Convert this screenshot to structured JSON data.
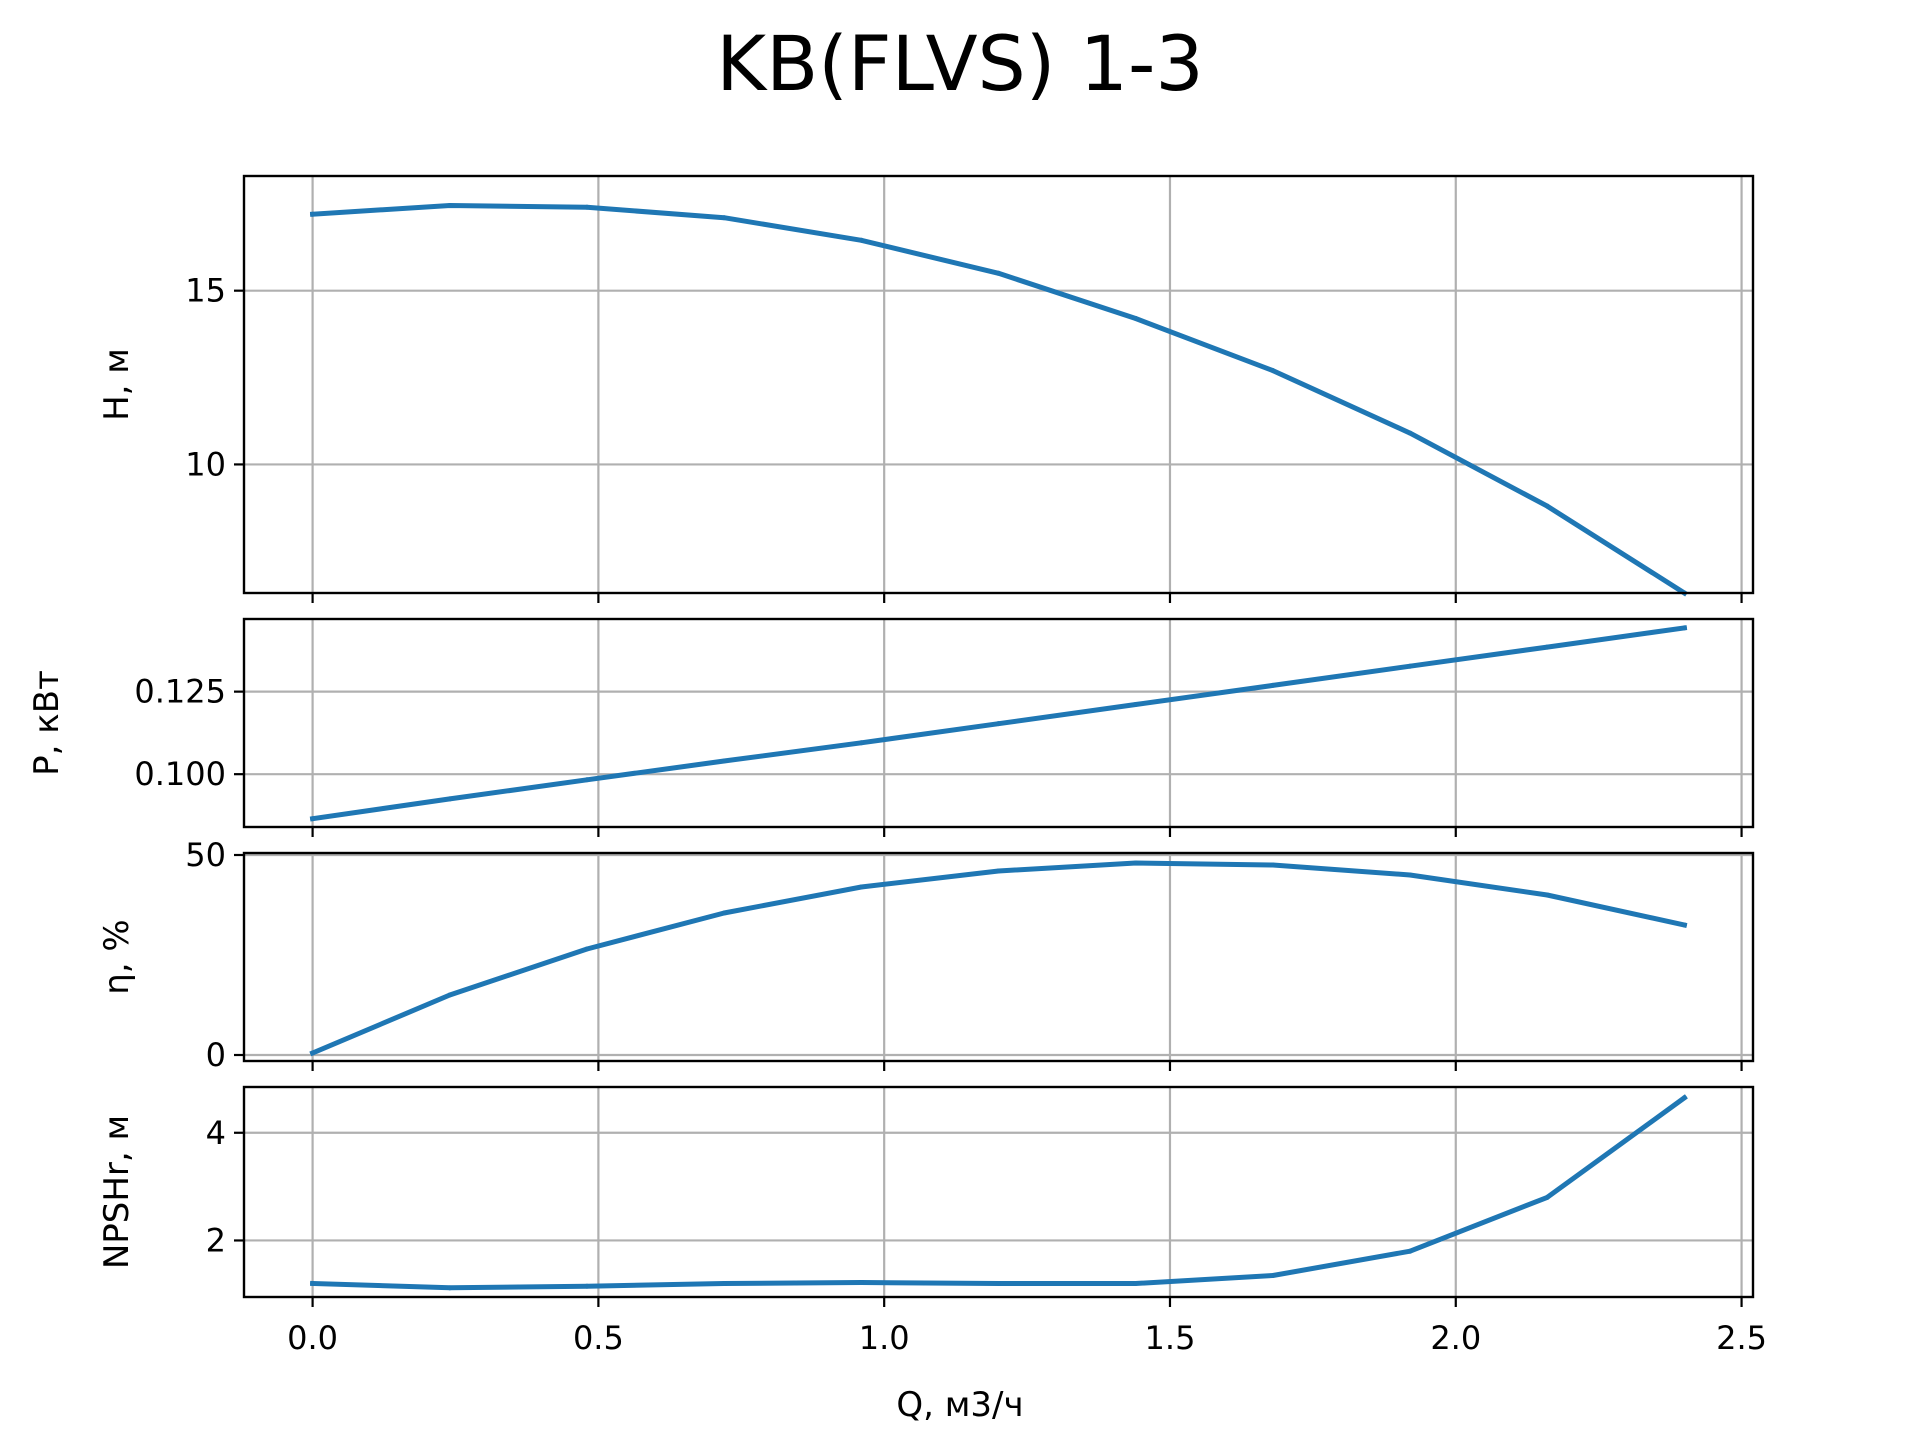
{
  "chart_data": {
    "type": "line",
    "title": "KB(FLVS) 1-3",
    "xlabel": "Q, м3/ч",
    "xlim": [
      -0.12,
      2.52
    ],
    "xticks": [
      0.0,
      0.5,
      1.0,
      1.5,
      2.0,
      2.5
    ],
    "xtick_labels": [
      "0.0",
      "0.5",
      "1.0",
      "1.5",
      "2.0",
      "2.5"
    ],
    "grid": true,
    "line_color": "#1f77b4",
    "x": [
      0.0,
      0.24,
      0.48,
      0.72,
      0.96,
      1.2,
      1.44,
      1.68,
      1.92,
      2.16,
      2.4
    ],
    "panels": [
      {
        "ylabel": "H, м",
        "ylim": [
          6.3,
          18.3
        ],
        "yticks": [
          10,
          15
        ],
        "ytick_labels": [
          "10",
          "15"
        ],
        "values": [
          17.2,
          17.45,
          17.4,
          17.1,
          16.45,
          15.5,
          14.2,
          12.7,
          10.9,
          8.8,
          6.3
        ]
      },
      {
        "ylabel": "P, кВт",
        "ylim": [
          0.084,
          0.147
        ],
        "yticks": [
          0.1,
          0.125
        ],
        "ytick_labels": [
          "0.100",
          "0.125"
        ],
        "values": [
          0.0865,
          0.0925,
          0.0983,
          0.104,
          0.1095,
          0.1153,
          0.1211,
          0.1269,
          0.1327,
          0.1385,
          0.1443
        ]
      },
      {
        "ylabel": "η, %",
        "ylim": [
          -1.5,
          50.5
        ],
        "yticks": [
          0,
          50
        ],
        "ytick_labels": [
          "0",
          "50"
        ],
        "values": [
          0.5,
          15.0,
          26.5,
          35.5,
          42.0,
          46.0,
          48.0,
          47.5,
          45.0,
          40.0,
          32.5
        ]
      },
      {
        "ylabel": "NPSHr, м",
        "ylim": [
          0.95,
          4.85
        ],
        "yticks": [
          2,
          4
        ],
        "ytick_labels": [
          "2",
          "4"
        ],
        "values": [
          1.2,
          1.12,
          1.15,
          1.2,
          1.22,
          1.2,
          1.2,
          1.35,
          1.8,
          2.8,
          4.65
        ]
      }
    ]
  }
}
